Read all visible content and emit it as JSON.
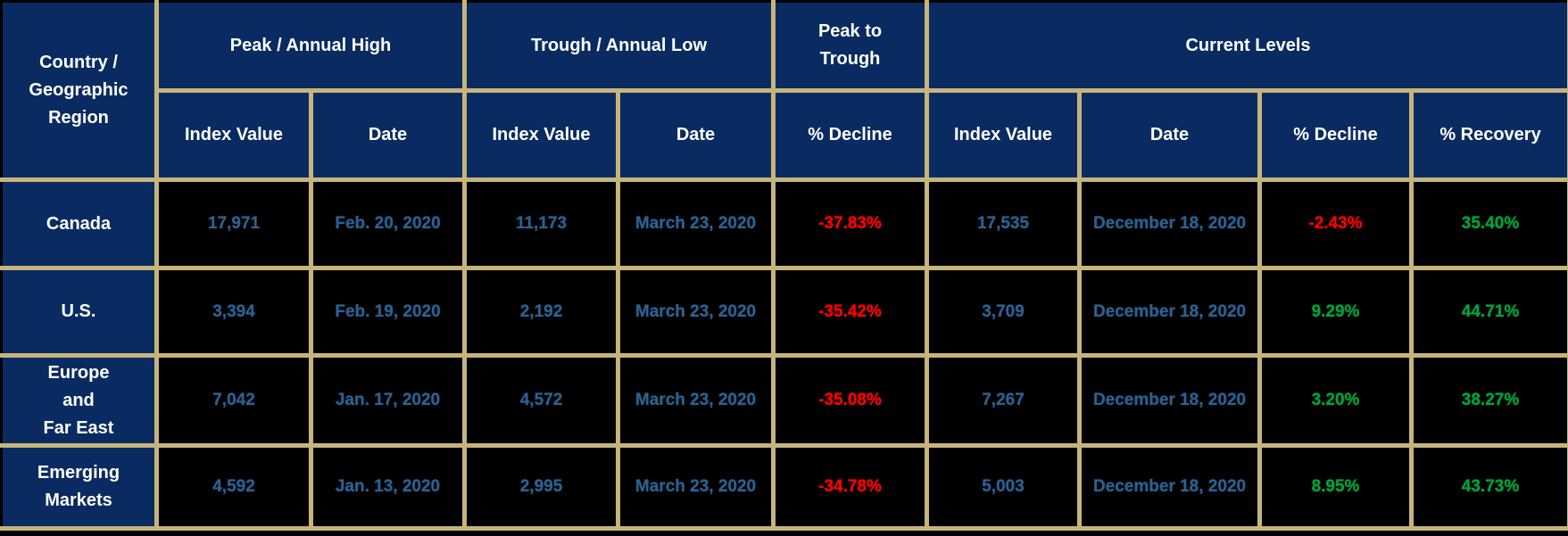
{
  "table": {
    "colors": {
      "header_bg": "#0a2b61",
      "header_text": "#ffffff",
      "grid": "#c6b47c",
      "cell_bg": "#000000",
      "value_text": "#2c608f",
      "negative_text": "#fe0000",
      "positive_text": "#00a33c"
    },
    "header": {
      "country": "Country /\nGeographic\nRegion",
      "groups": [
        {
          "label": "Peak / Annual High"
        },
        {
          "label": "Trough / Annual Low"
        },
        {
          "label": "Peak to\nTrough"
        },
        {
          "label": "Current Levels"
        }
      ],
      "columns": [
        "Index Value",
        "Date",
        "Index Value",
        "Date",
        "% Decline",
        "Index Value",
        "Date",
        "% Decline",
        "% Recovery"
      ]
    },
    "cell_types": [
      "index",
      "date",
      "index",
      "date",
      "percent",
      "index",
      "date",
      "percent",
      "percent"
    ],
    "rows": [
      {
        "region": "Canada",
        "cells": [
          "17,971",
          "Feb. 20, 2020",
          "11,173",
          "March 23, 2020",
          "-37.83%",
          "17,535",
          "December 18, 2020",
          "-2.43%",
          "35.40%"
        ]
      },
      {
        "region": "U.S.",
        "cells": [
          "3,394",
          "Feb. 19, 2020",
          "2,192",
          "March 23, 2020",
          "-35.42%",
          "3,709",
          "December 18, 2020",
          "9.29%",
          "44.71%"
        ]
      },
      {
        "region": "Europe\nand\nFar East",
        "cells": [
          "7,042",
          "Jan. 17, 2020",
          "4,572",
          "March 23, 2020",
          "-35.08%",
          "7,267",
          "December 18, 2020",
          "3.20%",
          "38.27%"
        ]
      },
      {
        "region": "Emerging\nMarkets",
        "cells": [
          "4,592",
          "Jan. 13, 2020",
          "2,995",
          "March 23, 2020",
          "-34.78%",
          "5,003",
          "December 18, 2020",
          "8.95%",
          "43.73%"
        ]
      }
    ]
  },
  "chart_data": {
    "type": "table",
    "column_groups": [
      "Peak / Annual High",
      "Trough / Annual Low",
      "Peak to Trough",
      "Current Levels"
    ],
    "columns": [
      "Country / Geographic Region",
      "Peak / Annual High - Index Value",
      "Peak / Annual High - Date",
      "Trough / Annual Low - Index Value",
      "Trough / Annual Low - Date",
      "Peak to Trough - % Decline",
      "Current Levels - Index Value",
      "Current Levels - Date",
      "Current Levels - % Decline",
      "Current Levels - % Recovery"
    ],
    "rows": [
      [
        "Canada",
        17971,
        "Feb. 20, 2020",
        11173,
        "March 23, 2020",
        -37.83,
        17535,
        "December 18, 2020",
        -2.43,
        35.4
      ],
      [
        "U.S.",
        3394,
        "Feb. 19, 2020",
        2192,
        "March 23, 2020",
        -35.42,
        3709,
        "December 18, 2020",
        9.29,
        44.71
      ],
      [
        "Europe and Far East",
        7042,
        "Jan. 17, 2020",
        4572,
        "March 23, 2020",
        -35.08,
        7267,
        "December 18, 2020",
        3.2,
        38.27
      ],
      [
        "Emerging Markets",
        4592,
        "Jan. 13, 2020",
        2995,
        "March 23, 2020",
        -34.78,
        5003,
        "December 18, 2020",
        8.95,
        43.73
      ]
    ]
  }
}
